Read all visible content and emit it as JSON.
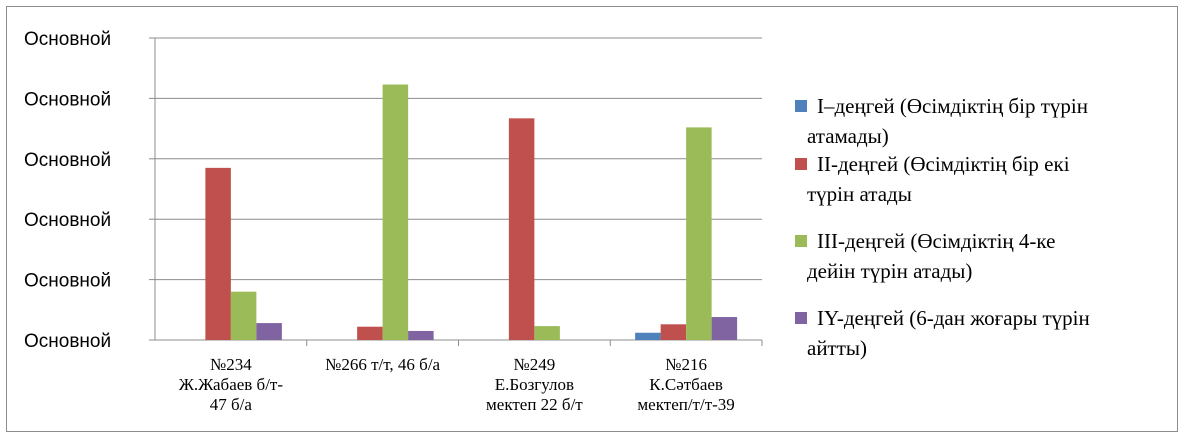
{
  "chart_data": {
    "type": "bar",
    "title": "",
    "xlabel": "",
    "ylabel": "",
    "ytick_labels": [
      "Основной",
      "Основной",
      "Основной",
      "Основной",
      "Основной",
      "Основной"
    ],
    "ylim": [
      0,
      50
    ],
    "grid": true,
    "legend_position": "right",
    "categories": [
      [
        "№234",
        "Ж.Жабаев  б/т-",
        "47 б/а"
      ],
      [
        "№266 т/т, 46 б/а"
      ],
      [
        "№249",
        "Е.Бозгулов",
        "мектеп 22 б/т"
      ],
      [
        "№216",
        "К.Сәтбаев",
        "мектеп/т/т-39"
      ]
    ],
    "series": [
      {
        "name": [
          "I–деңгей (Өсімдіктің бір түрін",
          "атамады)"
        ],
        "color": "#4f81bd",
        "values": [
          0,
          0,
          0,
          1.2
        ]
      },
      {
        "name": [
          "II-деңгей (Өсімдіктің бір екі",
          "түрін атады"
        ],
        "color": "#c0504d",
        "values": [
          28.5,
          2.2,
          36.7,
          2.6
        ]
      },
      {
        "name": [
          "III-деңгей (Өсімдіктің 4-ке",
          "дейін түрін атады)"
        ],
        "color": "#9bbb59",
        "values": [
          8,
          42.3,
          2.3,
          35.2
        ]
      },
      {
        "name": [
          "IY-деңгей (6-дан жоғары түрін",
          "айтты)"
        ],
        "color": "#8064a2",
        "values": [
          2.8,
          1.5,
          0,
          3.8
        ]
      }
    ]
  }
}
